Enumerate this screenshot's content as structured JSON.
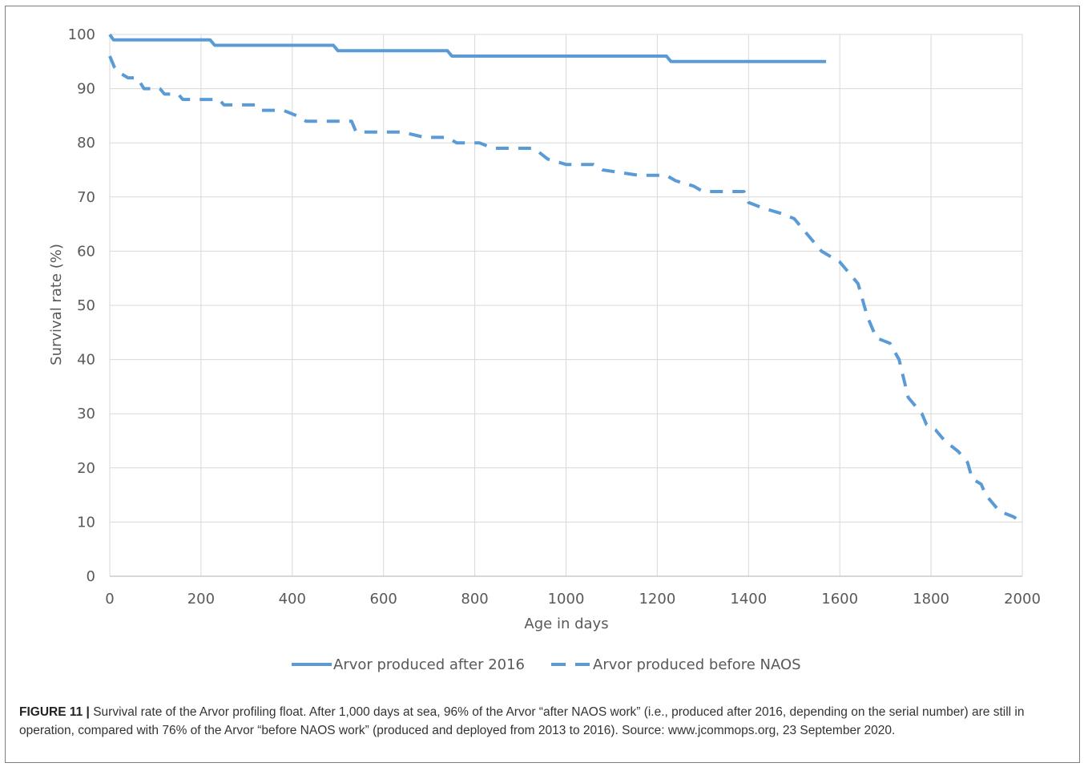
{
  "chart_data": {
    "type": "line",
    "xlabel": "Age in days",
    "ylabel": "Survival rate (%)",
    "xlim": [
      0,
      2000
    ],
    "ylim": [
      0,
      100
    ],
    "xticks": [
      "0",
      "200",
      "400",
      "600",
      "800",
      "1000",
      "1200",
      "1400",
      "1600",
      "1800",
      "2000"
    ],
    "yticks": [
      "0",
      "10",
      "20",
      "30",
      "40",
      "50",
      "60",
      "70",
      "80",
      "90",
      "100"
    ],
    "grid": true,
    "legend_position": "bottom",
    "series": [
      {
        "name": "Arvor produced after 2016",
        "style": "solid",
        "color": "#5b9bd5",
        "points": [
          [
            0,
            100
          ],
          [
            8,
            99
          ],
          [
            220,
            99
          ],
          [
            230,
            98
          ],
          [
            490,
            98
          ],
          [
            500,
            97
          ],
          [
            740,
            97
          ],
          [
            750,
            96
          ],
          [
            1220,
            96
          ],
          [
            1230,
            95
          ],
          [
            1570,
            95
          ]
        ]
      },
      {
        "name": "Arvor produced before NAOS",
        "style": "dashed",
        "color": "#5b9bd5",
        "points": [
          [
            0,
            96
          ],
          [
            10,
            94
          ],
          [
            20,
            93
          ],
          [
            40,
            92
          ],
          [
            60,
            92
          ],
          [
            75,
            90
          ],
          [
            110,
            90
          ],
          [
            120,
            89
          ],
          [
            150,
            89
          ],
          [
            160,
            88
          ],
          [
            200,
            88
          ],
          [
            240,
            88
          ],
          [
            250,
            87
          ],
          [
            320,
            87
          ],
          [
            330,
            86
          ],
          [
            380,
            86
          ],
          [
            410,
            85
          ],
          [
            430,
            84
          ],
          [
            460,
            84
          ],
          [
            530,
            84
          ],
          [
            540,
            82
          ],
          [
            640,
            82
          ],
          [
            690,
            81
          ],
          [
            740,
            81
          ],
          [
            760,
            80
          ],
          [
            810,
            80
          ],
          [
            840,
            79
          ],
          [
            930,
            79
          ],
          [
            960,
            77
          ],
          [
            1000,
            76
          ],
          [
            1060,
            76
          ],
          [
            1080,
            75
          ],
          [
            1160,
            74
          ],
          [
            1220,
            74
          ],
          [
            1240,
            73
          ],
          [
            1280,
            72
          ],
          [
            1300,
            71
          ],
          [
            1390,
            71
          ],
          [
            1400,
            69
          ],
          [
            1430,
            68
          ],
          [
            1470,
            67
          ],
          [
            1500,
            66
          ],
          [
            1520,
            64
          ],
          [
            1560,
            60
          ],
          [
            1580,
            59
          ],
          [
            1600,
            58
          ],
          [
            1620,
            56
          ],
          [
            1640,
            54
          ],
          [
            1660,
            48
          ],
          [
            1680,
            44
          ],
          [
            1710,
            43
          ],
          [
            1730,
            40
          ],
          [
            1750,
            33
          ],
          [
            1780,
            30
          ],
          [
            1790,
            28
          ],
          [
            1810,
            27
          ],
          [
            1830,
            25
          ],
          [
            1860,
            23
          ],
          [
            1880,
            21
          ],
          [
            1890,
            18
          ],
          [
            1910,
            17
          ],
          [
            1920,
            15
          ],
          [
            1950,
            12
          ],
          [
            1980,
            11
          ],
          [
            2000,
            10
          ]
        ]
      }
    ]
  },
  "caption": {
    "label": "FIGURE 11 |",
    "text": " Survival rate of the Arvor profiling float. After 1,000 days at sea, 96% of the Arvor “after NAOS work” (i.e., produced after 2016, depending on the serial number) are still in operation, compared with 76% of the Arvor “before NAOS work” (produced and deployed from 2013 to 2016). Source: www.jcommops.org, 23 September 2020."
  }
}
